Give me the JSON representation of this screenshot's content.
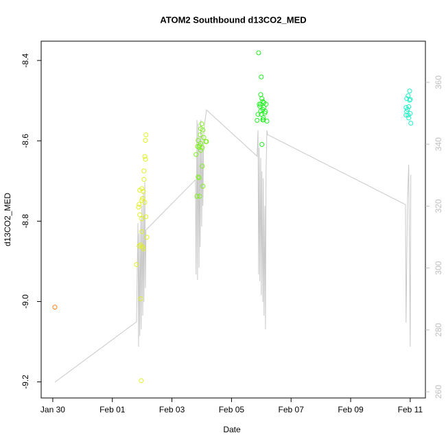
{
  "chart_data": {
    "type": "scatter",
    "title": "ATOM2 Southbound d13CO2_MED",
    "xlabel": "Date",
    "ylabel": "d13CO2_MED",
    "xlim": [
      -0.39,
      12.51
    ],
    "xticks": [
      {
        "value": 0,
        "label": "Jan 30"
      },
      {
        "value": 2,
        "label": "Feb 01"
      },
      {
        "value": 4,
        "label": "Feb 03"
      },
      {
        "value": 6,
        "label": "Feb 05"
      },
      {
        "value": 8,
        "label": "Feb 07"
      },
      {
        "value": 10,
        "label": "Feb 09"
      },
      {
        "value": 12,
        "label": "Feb 11"
      }
    ],
    "ylim": [
      -9.24,
      -8.352
    ],
    "yticks": [
      -9.2,
      {
        "value": -9,
        "label": "-9.0"
      },
      -8.8,
      -8.6,
      -8.4
    ],
    "y2lim": [
      258,
      373.3
    ],
    "y2ticks": [
      260,
      280,
      300,
      320,
      340,
      360
    ],
    "y2tick_color": "#bebebe",
    "x": [
      0.07,
      2.81,
      2.9,
      2.88,
      2.92,
      2.95,
      2.97,
      2.99,
      2.95,
      2.99,
      2.99,
      3.02,
      3.04,
      3.04,
      3.06,
      3.06,
      3.09,
      3.09,
      3.11,
      3.11,
      3.13,
      3.13,
      3.16,
      2.99,
      3.02,
      2.9,
      2.92,
      4.81,
      4.84,
      4.86,
      4.88,
      4.88,
      4.91,
      4.93,
      4.93,
      4.95,
      4.97,
      4.97,
      4.97,
      5.0,
      5.02,
      5.04,
      5.02,
      5.04,
      5.07,
      5.14,
      5.16,
      4.91,
      6.91,
      7.0,
      6.93,
      6.98,
      7.0,
      6.95,
      6.98,
      6.98,
      7.05,
      7.02,
      7.05,
      7.07,
      7.09,
      7.07,
      7.09,
      7.12,
      7.14,
      7.16,
      7.02,
      6.89,
      6.86,
      7.19,
      7.05,
      11.88,
      11.93,
      11.95,
      11.98,
      11.98,
      12.0,
      11.86,
      11.91,
      11.93,
      12.0,
      11.86,
      12.02,
      11.88,
      11.95
    ],
    "values": [
      -9.014,
      -8.908,
      -8.758,
      -8.765,
      -8.723,
      -8.993,
      -9.197,
      -8.794,
      -8.859,
      -8.748,
      -8.826,
      -8.864,
      -8.869,
      -8.726,
      -8.675,
      -8.696,
      -8.753,
      -8.639,
      -8.599,
      -8.646,
      -8.585,
      -8.789,
      -8.84,
      -8.719,
      -8.743,
      -8.862,
      -8.784,
      -8.634,
      -8.738,
      -8.614,
      -8.69,
      -8.599,
      -8.616,
      -8.612,
      -8.738,
      -8.585,
      -8.57,
      -8.607,
      -8.624,
      -8.558,
      -8.617,
      -8.713,
      -8.663,
      -8.573,
      -8.592,
      -8.602,
      -8.602,
      -8.692,
      -8.381,
      -8.441,
      -8.509,
      -8.526,
      -8.534,
      -8.514,
      -8.485,
      -8.509,
      -8.502,
      -8.495,
      -8.522,
      -8.543,
      -8.517,
      -8.548,
      -8.505,
      -8.531,
      -8.527,
      -8.509,
      -8.609,
      -8.534,
      -8.549,
      -8.551,
      -8.548,
      -8.495,
      -8.488,
      -8.515,
      -8.476,
      -8.499,
      -8.497,
      -8.536,
      -8.522,
      -8.536,
      -8.532,
      -8.517,
      -8.556,
      -8.527,
      -8.543
    ],
    "colors": [
      "#ff8020",
      "#e0f020",
      "#e0f020",
      "#e0f020",
      "#e0f020",
      "#e0f020",
      "#e0f020",
      "#e0f020",
      "#e0f020",
      "#e0f020",
      "#e0f020",
      "#e0f020",
      "#e0f020",
      "#e0f020",
      "#e0f020",
      "#e0f020",
      "#e0f020",
      "#e0f020",
      "#e0f020",
      "#e0f020",
      "#e0f020",
      "#e0f020",
      "#e0f020",
      "#e0f020",
      "#e0f020",
      "#e0f020",
      "#e0f020",
      "#80f020",
      "#80f020",
      "#80f020",
      "#80f020",
      "#80f020",
      "#80f020",
      "#80f020",
      "#80f020",
      "#80f020",
      "#80f020",
      "#80f020",
      "#80f020",
      "#80f020",
      "#80f020",
      "#80f020",
      "#80f020",
      "#80f020",
      "#80f020",
      "#80f020",
      "#80f020",
      "#80f020",
      "#20f020",
      "#20f020",
      "#20f020",
      "#20f020",
      "#20f020",
      "#20f020",
      "#20f020",
      "#20f020",
      "#20f020",
      "#20f020",
      "#20f020",
      "#20f020",
      "#20f020",
      "#20f020",
      "#20f020",
      "#20f020",
      "#20f020",
      "#20f020",
      "#20f020",
      "#20f020",
      "#20f020",
      "#20f020",
      "#20f020",
      "#20f0c8",
      "#20f0c8",
      "#20f0c8",
      "#20f0c8",
      "#20f0c8",
      "#20f0c8",
      "#20f0c8",
      "#20f0c8",
      "#20f0c8",
      "#20f0c8",
      "#20f0c8",
      "#20f0c8",
      "#20f0c8",
      "#20f0c8"
    ],
    "line": {
      "axis": "y2",
      "color": "#c8c8c8",
      "x": [
        0.07,
        2.81,
        2.86,
        2.88,
        2.9,
        2.92,
        2.95,
        2.97,
        2.99,
        3.02,
        3.04,
        3.06,
        3.09,
        3.11,
        3.13,
        4.79,
        4.81,
        4.84,
        4.86,
        4.88,
        4.91,
        4.93,
        4.95,
        4.97,
        5.0,
        5.02,
        5.04,
        5.07,
        5.16,
        6.86,
        6.89,
        6.91,
        6.93,
        6.95,
        6.98,
        7.0,
        7.02,
        7.05,
        7.07,
        7.09,
        7.12,
        7.14,
        7.16,
        7.19,
        7.21,
        11.84,
        11.86,
        11.91,
        11.95,
        12.0,
        12.02
      ],
      "values": [
        263.1,
        282.6,
        314.5,
        274.6,
        311.2,
        278.0,
        315.7,
        280.2,
        320.1,
        284.6,
        324.5,
        289.0,
        327.8,
        293.5,
        312.3,
        328.5,
        297.9,
        347.8,
        296.1,
        346.7,
        300.1,
        342.3,
        306.8,
        347.8,
        313.4,
        342.3,
        320.1,
        344.5,
        351.1,
        336.1,
        344.5,
        297.9,
        338.9,
        295.7,
        335.6,
        291.3,
        331.2,
        289.0,
        329.0,
        284.6,
        320.1,
        280.2,
        331.2,
        344.5,
        343.1,
        320.5,
        282.4,
        322.3,
        333.4,
        274.6,
        330.1
      ]
    }
  }
}
